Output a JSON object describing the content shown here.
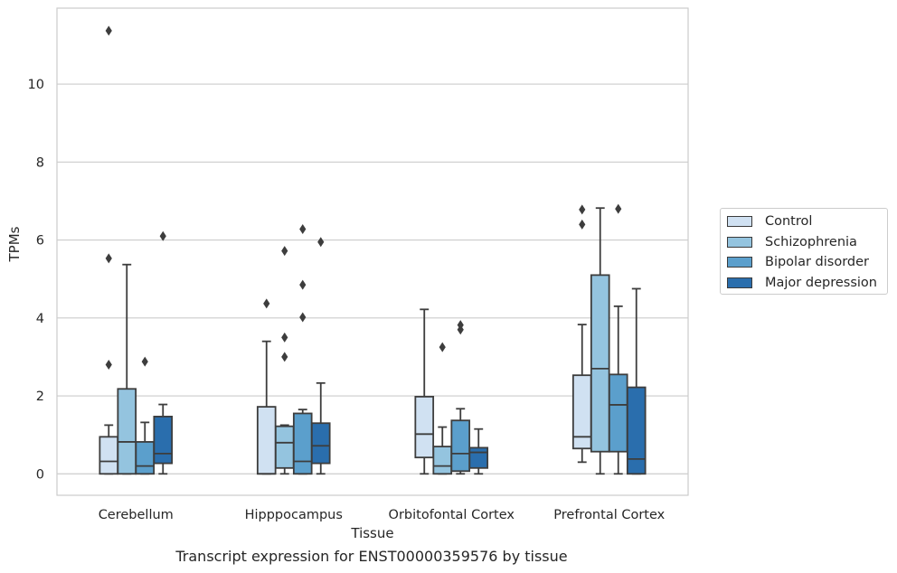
{
  "chart_data": {
    "type": "box",
    "xlabel": "Tissue",
    "ylabel": "TPMs",
    "caption": "Transcript expression for ENST00000359576 by tissue",
    "categories": [
      "Cerebellum",
      "Hipppocampus",
      "Orbitofontal Cortex",
      "Prefrontal Cortex"
    ],
    "ylim": [
      -0.55,
      11.95
    ],
    "yticks": [
      0,
      2,
      4,
      6,
      8,
      10
    ],
    "grid": true,
    "legend_position": "right",
    "series": [
      {
        "name": "Control",
        "color": "#d0e1f2",
        "boxes": [
          {
            "whisker_low": 0.0,
            "q1": 0.0,
            "median": 0.32,
            "q3": 0.95,
            "whisker_high": 1.25,
            "outliers": [
              2.8,
              5.53,
              11.37
            ]
          },
          {
            "whisker_low": 0.0,
            "q1": 0.0,
            "median": 0.0,
            "q3": 1.72,
            "whisker_high": 3.4,
            "outliers": [
              4.37
            ]
          },
          {
            "whisker_low": 0.0,
            "q1": 0.42,
            "median": 1.02,
            "q3": 1.98,
            "whisker_high": 4.22,
            "outliers": []
          },
          {
            "whisker_low": 0.3,
            "q1": 0.65,
            "median": 0.95,
            "q3": 2.53,
            "whisker_high": 3.83,
            "outliers": [
              6.4,
              6.78
            ]
          }
        ]
      },
      {
        "name": "Schizophrenia",
        "color": "#94c4df",
        "boxes": [
          {
            "whisker_low": 0.0,
            "q1": 0.0,
            "median": 0.82,
            "q3": 2.18,
            "whisker_high": 5.37,
            "outliers": []
          },
          {
            "whisker_low": 0.0,
            "q1": 0.15,
            "median": 0.8,
            "q3": 1.22,
            "whisker_high": 1.25,
            "outliers": [
              3.0,
              3.5,
              5.72
            ]
          },
          {
            "whisker_low": 0.0,
            "q1": 0.0,
            "median": 0.2,
            "q3": 0.7,
            "whisker_high": 1.2,
            "outliers": [
              3.25
            ]
          },
          {
            "whisker_low": 0.0,
            "q1": 0.57,
            "median": 2.7,
            "q3": 5.1,
            "whisker_high": 6.82,
            "outliers": []
          }
        ]
      },
      {
        "name": "Bipolar disorder",
        "color": "#5b9fcc",
        "boxes": [
          {
            "whisker_low": 0.0,
            "q1": 0.0,
            "median": 0.2,
            "q3": 0.82,
            "whisker_high": 1.32,
            "outliers": [
              2.88
            ]
          },
          {
            "whisker_low": 0.0,
            "q1": 0.0,
            "median": 0.32,
            "q3": 1.55,
            "whisker_high": 1.65,
            "outliers": [
              4.02,
              4.85,
              6.28
            ]
          },
          {
            "whisker_low": 0.0,
            "q1": 0.07,
            "median": 0.52,
            "q3": 1.37,
            "whisker_high": 1.67,
            "outliers": [
              3.7,
              3.82
            ]
          },
          {
            "whisker_low": 0.0,
            "q1": 0.57,
            "median": 1.77,
            "q3": 2.55,
            "whisker_high": 4.3,
            "outliers": [
              6.8
            ]
          }
        ]
      },
      {
        "name": "Major depression",
        "color": "#2a6ead",
        "boxes": [
          {
            "whisker_low": 0.0,
            "q1": 0.27,
            "median": 0.52,
            "q3": 1.47,
            "whisker_high": 1.78,
            "outliers": [
              6.1
            ]
          },
          {
            "whisker_low": 0.0,
            "q1": 0.27,
            "median": 0.72,
            "q3": 1.3,
            "whisker_high": 2.33,
            "outliers": [
              5.95
            ]
          },
          {
            "whisker_low": 0.0,
            "q1": 0.15,
            "median": 0.55,
            "q3": 0.67,
            "whisker_high": 1.15,
            "outliers": []
          },
          {
            "whisker_low": 0.0,
            "q1": 0.0,
            "median": 0.38,
            "q3": 2.22,
            "whisker_high": 4.75,
            "outliers": []
          }
        ]
      }
    ]
  }
}
